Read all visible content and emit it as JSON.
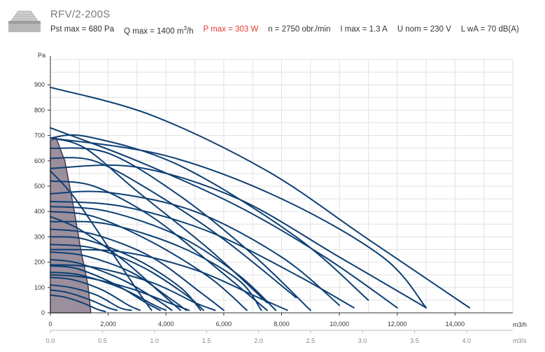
{
  "title": "RFV/2-200S",
  "specs": {
    "pst": "Pst max = 680 Pa",
    "q_prefix": "Q max = 1400 m",
    "q_exp": "3",
    "q_suffix": "/h",
    "p": "P max = 303 W",
    "n": "n = 2750 obr./min",
    "i": "I max = 1.3 A",
    "u": "U nom = 230 V",
    "l": "L wA = 70 dB(A)"
  },
  "colors": {
    "curve": "#0d3f73",
    "region_fill": "#8a7b8c",
    "region_stroke": "#4a3550",
    "grid": "#e1e1e1",
    "axis_text": "#333333",
    "sub_axis_text": "#888888",
    "highlight": "#e53935"
  },
  "chart_data": {
    "type": "line",
    "ylabel": "Pa",
    "xlabel": "m3/h",
    "x2label": "m3/s",
    "xlim": [
      0,
      16000
    ],
    "ylim": [
      0,
      1000
    ],
    "x2lim": [
      0,
      4.4444
    ],
    "x_ticks": [
      0,
      2000,
      4000,
      6000,
      8000,
      10000,
      12000,
      14000
    ],
    "x_tick_labels": [
      "0",
      "2,000",
      "4,000",
      "6,000",
      "8,000",
      "10,000",
      "12,000",
      "14,000"
    ],
    "x2_ticks": [
      0,
      0.5,
      1,
      1.5,
      2,
      2.5,
      3,
      3.5,
      4
    ],
    "x2_tick_labels": [
      "0.0",
      "0.5",
      "1.0",
      "1.5",
      "2.0",
      "2.5",
      "3.0",
      "3.5",
      "4.0"
    ],
    "y_ticks": [
      0,
      100,
      200,
      300,
      400,
      500,
      600,
      700,
      800,
      900
    ],
    "y_tick_labels": [
      "0",
      "100",
      "200",
      "300",
      "400",
      "500",
      "600",
      "700",
      "800",
      "900"
    ],
    "grid": true,
    "selected_region": [
      [
        0,
        680
      ],
      [
        200,
        690
      ],
      [
        500,
        600
      ],
      [
        800,
        420
      ],
      [
        1050,
        250
      ],
      [
        1300,
        110
      ],
      [
        1400,
        0
      ],
      [
        0,
        0
      ]
    ],
    "series": [
      {
        "values": [
          [
            0,
            890
          ],
          [
            3500,
            780
          ],
          [
            7500,
            560
          ],
          [
            11000,
            290
          ],
          [
            14500,
            20
          ]
        ]
      },
      {
        "values": [
          [
            0,
            690
          ],
          [
            4000,
            620
          ],
          [
            8000,
            450
          ],
          [
            11500,
            220
          ],
          [
            13000,
            20
          ]
        ]
      },
      {
        "values": [
          [
            0,
            730
          ],
          [
            3000,
            600
          ],
          [
            6500,
            420
          ],
          [
            9500,
            220
          ],
          [
            12000,
            20
          ]
        ]
      },
      {
        "values": [
          [
            0,
            690
          ],
          [
            1300,
            695
          ],
          [
            4500,
            580
          ],
          [
            8500,
            300
          ],
          [
            11000,
            50
          ]
        ]
      },
      {
        "values": [
          [
            0,
            570
          ],
          [
            3000,
            575
          ],
          [
            6500,
            450
          ],
          [
            10000,
            220
          ],
          [
            13000,
            20
          ]
        ]
      },
      {
        "values": [
          [
            0,
            470
          ],
          [
            2000,
            475
          ],
          [
            5000,
            400
          ],
          [
            8000,
            220
          ],
          [
            10000,
            30
          ]
        ]
      },
      {
        "values": [
          [
            0,
            610
          ],
          [
            1500,
            600
          ],
          [
            3500,
            480
          ],
          [
            6000,
            290
          ],
          [
            8500,
            60
          ]
        ]
      },
      {
        "values": [
          [
            0,
            650
          ],
          [
            2000,
            630
          ],
          [
            4500,
            460
          ],
          [
            7000,
            230
          ],
          [
            9000,
            10
          ]
        ]
      },
      {
        "values": [
          [
            0,
            690
          ],
          [
            1200,
            650
          ],
          [
            3000,
            480
          ],
          [
            5500,
            250
          ],
          [
            7500,
            40
          ]
        ]
      },
      {
        "values": [
          [
            0,
            520
          ],
          [
            1500,
            500
          ],
          [
            3500,
            380
          ],
          [
            5500,
            200
          ],
          [
            7500,
            10
          ]
        ]
      },
      {
        "values": [
          [
            0,
            420
          ],
          [
            2000,
            400
          ],
          [
            4500,
            300
          ],
          [
            6500,
            150
          ],
          [
            7800,
            10
          ]
        ]
      },
      {
        "values": [
          [
            0,
            400
          ],
          [
            1500,
            380
          ],
          [
            3500,
            280
          ],
          [
            5500,
            140
          ],
          [
            6800,
            10
          ]
        ]
      },
      {
        "values": [
          [
            0,
            360
          ],
          [
            2000,
            350
          ],
          [
            4500,
            260
          ],
          [
            6500,
            130
          ],
          [
            7300,
            10
          ]
        ]
      },
      {
        "values": [
          [
            0,
            330
          ],
          [
            1500,
            310
          ],
          [
            3500,
            220
          ],
          [
            5200,
            80
          ],
          [
            6000,
            10
          ]
        ]
      },
      {
        "values": [
          [
            0,
            300
          ],
          [
            1200,
            290
          ],
          [
            3000,
            210
          ],
          [
            4500,
            100
          ],
          [
            5200,
            10
          ]
        ]
      },
      {
        "values": [
          [
            0,
            270
          ],
          [
            1500,
            255
          ],
          [
            3200,
            180
          ],
          [
            4700,
            70
          ],
          [
            5300,
            10
          ]
        ]
      },
      {
        "values": [
          [
            0,
            240
          ],
          [
            1200,
            225
          ],
          [
            2800,
            160
          ],
          [
            4100,
            60
          ],
          [
            4700,
            10
          ]
        ]
      },
      {
        "values": [
          [
            0,
            210
          ],
          [
            1000,
            195
          ],
          [
            2500,
            130
          ],
          [
            3700,
            50
          ],
          [
            4200,
            10
          ]
        ]
      },
      {
        "values": [
          [
            0,
            185
          ],
          [
            900,
            175
          ],
          [
            2200,
            115
          ],
          [
            3300,
            40
          ],
          [
            3800,
            10
          ]
        ]
      },
      {
        "values": [
          [
            0,
            160
          ],
          [
            1000,
            150
          ],
          [
            2400,
            100
          ],
          [
            3600,
            30
          ],
          [
            4000,
            10
          ]
        ]
      },
      {
        "values": [
          [
            0,
            140
          ],
          [
            800,
            130
          ],
          [
            1800,
            90
          ],
          [
            2700,
            30
          ],
          [
            3100,
            10
          ]
        ]
      },
      {
        "values": [
          [
            0,
            110
          ],
          [
            700,
            100
          ],
          [
            1600,
            70
          ],
          [
            2400,
            20
          ],
          [
            2800,
            10
          ]
        ]
      },
      {
        "values": [
          [
            0,
            90
          ],
          [
            600,
            80
          ],
          [
            1400,
            50
          ],
          [
            2000,
            20
          ],
          [
            2300,
            10
          ]
        ]
      },
      {
        "values": [
          [
            0,
            70
          ],
          [
            500,
            62
          ],
          [
            1100,
            40
          ],
          [
            1600,
            15
          ],
          [
            1900,
            5
          ]
        ]
      },
      {
        "values": [
          [
            0,
            440
          ],
          [
            2500,
            420
          ],
          [
            5500,
            320
          ],
          [
            8500,
            150
          ],
          [
            10500,
            20
          ]
        ]
      },
      {
        "values": [
          [
            0,
            250
          ],
          [
            2500,
            240
          ],
          [
            5000,
            170
          ],
          [
            7200,
            60
          ],
          [
            8200,
            10
          ]
        ]
      },
      {
        "values": [
          [
            0,
            380
          ],
          [
            1000,
            330
          ],
          [
            2500,
            210
          ],
          [
            3800,
            80
          ],
          [
            4500,
            10
          ]
        ]
      },
      {
        "values": [
          [
            0,
            560
          ],
          [
            800,
            460
          ],
          [
            2000,
            260
          ],
          [
            3000,
            90
          ],
          [
            3500,
            10
          ]
        ]
      },
      {
        "values": [
          [
            0,
            190
          ],
          [
            1500,
            180
          ],
          [
            3500,
            120
          ],
          [
            5000,
            40
          ],
          [
            5700,
            10
          ]
        ]
      },
      {
        "values": [
          [
            0,
            150
          ],
          [
            1200,
            140
          ],
          [
            2800,
            95
          ],
          [
            4200,
            35
          ],
          [
            4800,
            10
          ]
        ]
      }
    ]
  }
}
